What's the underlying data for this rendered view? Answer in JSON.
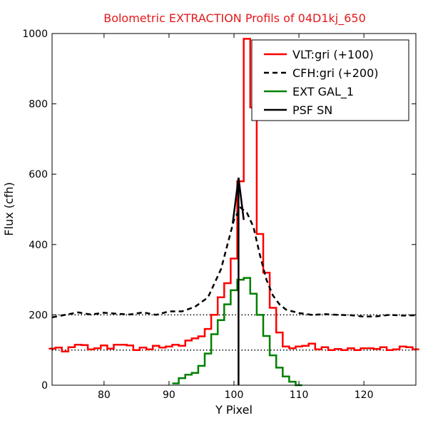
{
  "chart_data": {
    "type": "line",
    "title": "Bolometric EXTRACTION Profils of 04D1kj_650",
    "xlabel": "Y Pixel",
    "ylabel": "Flux (cfh)",
    "xlim": [
      72,
      128
    ],
    "ylim": [
      0,
      1000
    ],
    "x_ticks": [
      80,
      90,
      100,
      110,
      120
    ],
    "y_ticks": [
      0,
      200,
      400,
      600,
      800,
      1000
    ],
    "legend_position": "top-right",
    "colors": {
      "title": "#e31a1c",
      "vlt": "#ff0000",
      "cfh": "#000000",
      "ext": "#008000",
      "psf": "#000000",
      "reference": "#000000"
    },
    "reference_lines": [
      100,
      200
    ],
    "series": [
      {
        "name": "VLT:gri (+100)",
        "style": "step",
        "x": [
          72,
          73,
          74,
          75,
          76,
          77,
          78,
          79,
          80,
          81,
          82,
          83,
          84,
          85,
          86,
          87,
          88,
          89,
          90,
          91,
          92,
          93,
          94,
          95,
          96,
          97,
          98,
          99,
          100,
          101,
          102,
          103,
          104,
          105,
          106,
          107,
          108,
          109,
          110,
          111,
          112,
          113,
          114,
          115,
          116,
          117,
          118,
          119,
          120,
          121,
          122,
          123,
          124,
          125,
          126,
          127,
          128
        ],
        "values": [
          104,
          107,
          96,
          108,
          115,
          114,
          102,
          105,
          113,
          104,
          115,
          115,
          113,
          100,
          107,
          102,
          112,
          107,
          110,
          115,
          112,
          127,
          133,
          139,
          160,
          200,
          250,
          290,
          360,
          580,
          985,
          790,
          430,
          320,
          220,
          150,
          110,
          105,
          110,
          112,
          118,
          102,
          108,
          100,
          103,
          100,
          105,
          100,
          105,
          105,
          103,
          108,
          100,
          102,
          110,
          108,
          102
        ]
      },
      {
        "name": "CFH:gri (+200)",
        "style": "dashed",
        "x": [
          72,
          74,
          76,
          78,
          80,
          82,
          84,
          86,
          88,
          90,
          92,
          94,
          96,
          98,
          99,
          100,
          101,
          102,
          103,
          104,
          105,
          106,
          107,
          108,
          110,
          112,
          114,
          116,
          118,
          120,
          122,
          124,
          126,
          128
        ],
        "values": [
          193,
          200,
          207,
          201,
          206,
          203,
          201,
          207,
          200,
          210,
          210,
          223,
          250,
          330,
          400,
          470,
          505,
          490,
          450,
          370,
          300,
          255,
          230,
          215,
          205,
          200,
          202,
          200,
          199,
          195,
          196,
          200,
          198,
          199
        ]
      },
      {
        "name": "EXT GAL_1",
        "style": "step",
        "x": [
          91,
          92,
          93,
          94,
          95,
          96,
          97,
          98,
          99,
          100,
          101,
          102,
          103,
          104,
          105,
          106,
          107,
          108,
          109,
          110
        ],
        "values": [
          5,
          20,
          30,
          35,
          55,
          90,
          145,
          185,
          230,
          270,
          300,
          305,
          260,
          200,
          140,
          85,
          50,
          25,
          10,
          0
        ]
      },
      {
        "name": "PSF SN",
        "style": "line",
        "x": [
          99.8,
          100.7,
          101.5
        ],
        "values": [
          460,
          590,
          470
        ],
        "vline_x": 100.7
      }
    ]
  }
}
